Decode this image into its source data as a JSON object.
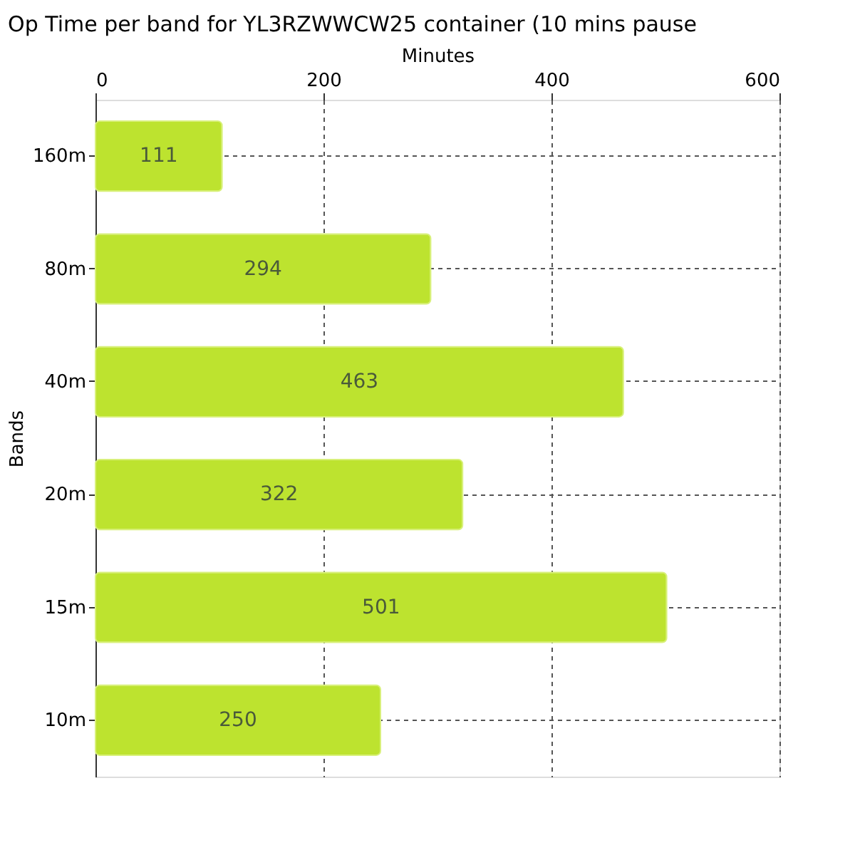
{
  "chart_data": {
    "type": "bar",
    "orientation": "horizontal",
    "title": "Op Time per band for YL3RZWWCW25 container (10 mins pause",
    "xlabel": "Minutes",
    "ylabel": "Bands",
    "categories": [
      "160m",
      "80m",
      "40m",
      "20m",
      "15m",
      "10m"
    ],
    "values": [
      111,
      294,
      463,
      322,
      501,
      250
    ],
    "color": "#bde32f",
    "xlim": [
      0,
      600
    ],
    "xticks": [
      0,
      200,
      400,
      600
    ],
    "grid": true,
    "data_labels": true
  }
}
